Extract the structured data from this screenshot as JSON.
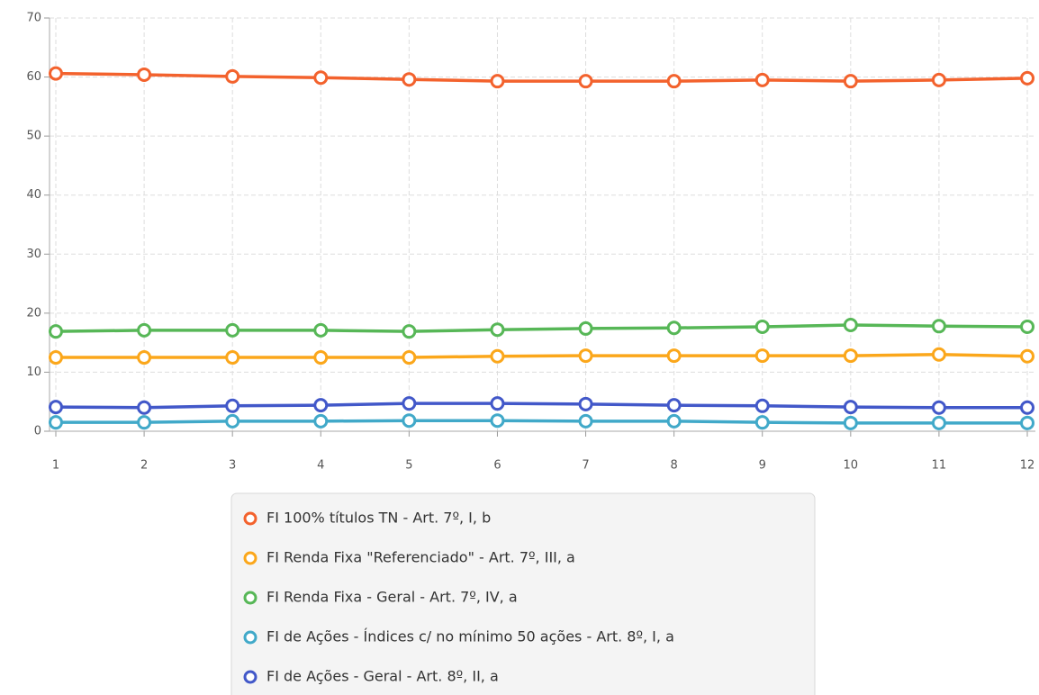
{
  "chart_data": {
    "type": "line",
    "x": [
      1,
      2,
      3,
      4,
      5,
      6,
      7,
      8,
      9,
      10,
      11,
      12
    ],
    "xlim": [
      1,
      12
    ],
    "xticks": [
      1,
      2,
      3,
      4,
      5,
      6,
      7,
      8,
      9,
      10,
      11,
      12
    ],
    "ylim": [
      0,
      70
    ],
    "yticks": [
      0,
      10,
      20,
      30,
      40,
      50,
      60,
      70
    ],
    "grid": true,
    "legend": "bottom",
    "series": [
      {
        "name": "FI 100% títulos TN - Art. 7º, I, b",
        "color": "#f3622d",
        "values": [
          60.6,
          60.4,
          60.1,
          59.9,
          59.6,
          59.3,
          59.3,
          59.3,
          59.5,
          59.3,
          59.5,
          59.8
        ]
      },
      {
        "name": "FI Renda Fixa \"Referenciado\" - Art. 7º, III, a",
        "color": "#fba71b",
        "values": [
          12.5,
          12.5,
          12.5,
          12.5,
          12.5,
          12.7,
          12.8,
          12.8,
          12.8,
          12.8,
          13.0,
          12.7
        ]
      },
      {
        "name": "FI Renda Fixa - Geral - Art. 7º, IV, a",
        "color": "#57b757",
        "values": [
          16.9,
          17.1,
          17.1,
          17.1,
          16.9,
          17.2,
          17.4,
          17.5,
          17.7,
          18.0,
          17.8,
          17.7
        ]
      },
      {
        "name": "FI de Ações - Índices c/ no mínimo 50 ações - Art. 8º, I, a",
        "color": "#41a9c9",
        "values": [
          1.5,
          1.5,
          1.7,
          1.7,
          1.8,
          1.8,
          1.7,
          1.7,
          1.5,
          1.4,
          1.4,
          1.4
        ]
      },
      {
        "name": "FI de Ações - Geral - Art. 8º, II, a",
        "color": "#4258c9",
        "values": [
          4.1,
          4.0,
          4.3,
          4.4,
          4.7,
          4.7,
          4.6,
          4.4,
          4.3,
          4.1,
          4.0,
          4.0
        ]
      }
    ]
  }
}
